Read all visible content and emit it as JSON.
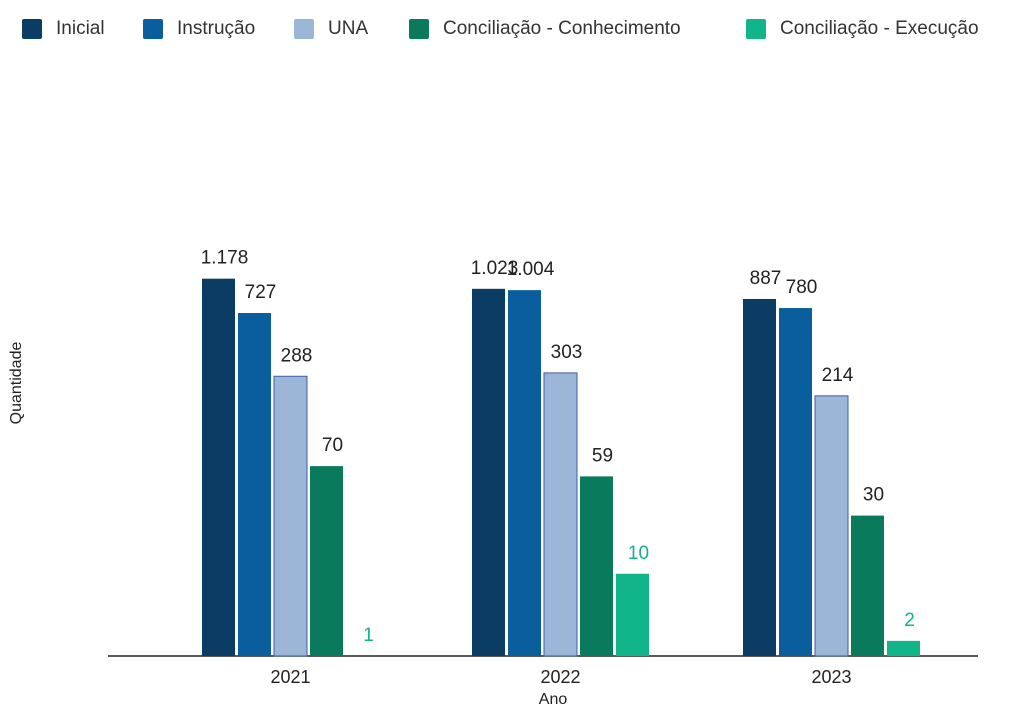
{
  "chart_data": {
    "type": "bar",
    "categories": [
      "2021",
      "2022",
      "2023"
    ],
    "series": [
      {
        "name": "Inicial",
        "color": "#0b3c64",
        "values": [
          1178,
          1023,
          887
        ],
        "labels": [
          "1.178",
          "1.023",
          "887"
        ]
      },
      {
        "name": "Instrução",
        "color": "#0a5e9e",
        "values": [
          727,
          1004,
          780
        ],
        "labels": [
          "727",
          "1.004",
          "780"
        ]
      },
      {
        "name": "UNA",
        "color": "#9cb6d8",
        "values": [
          288,
          303,
          214
        ],
        "labels": [
          "288",
          "303",
          "214"
        ]
      },
      {
        "name": "Conciliação - Conhecimento",
        "color": "#0a7a5c",
        "values": [
          70,
          59,
          30
        ],
        "labels": [
          "70",
          "59",
          "30"
        ]
      },
      {
        "name": "Conciliação - Execução",
        "color": "#12b48a",
        "values": [
          1,
          10,
          2
        ],
        "labels": [
          "1",
          "10",
          "2"
        ]
      }
    ],
    "xlabel": "Ano",
    "ylabel": "Quantidade",
    "legend_position": "top",
    "grid": false,
    "y_scale": "non-linear (bar heights not proportional)"
  }
}
